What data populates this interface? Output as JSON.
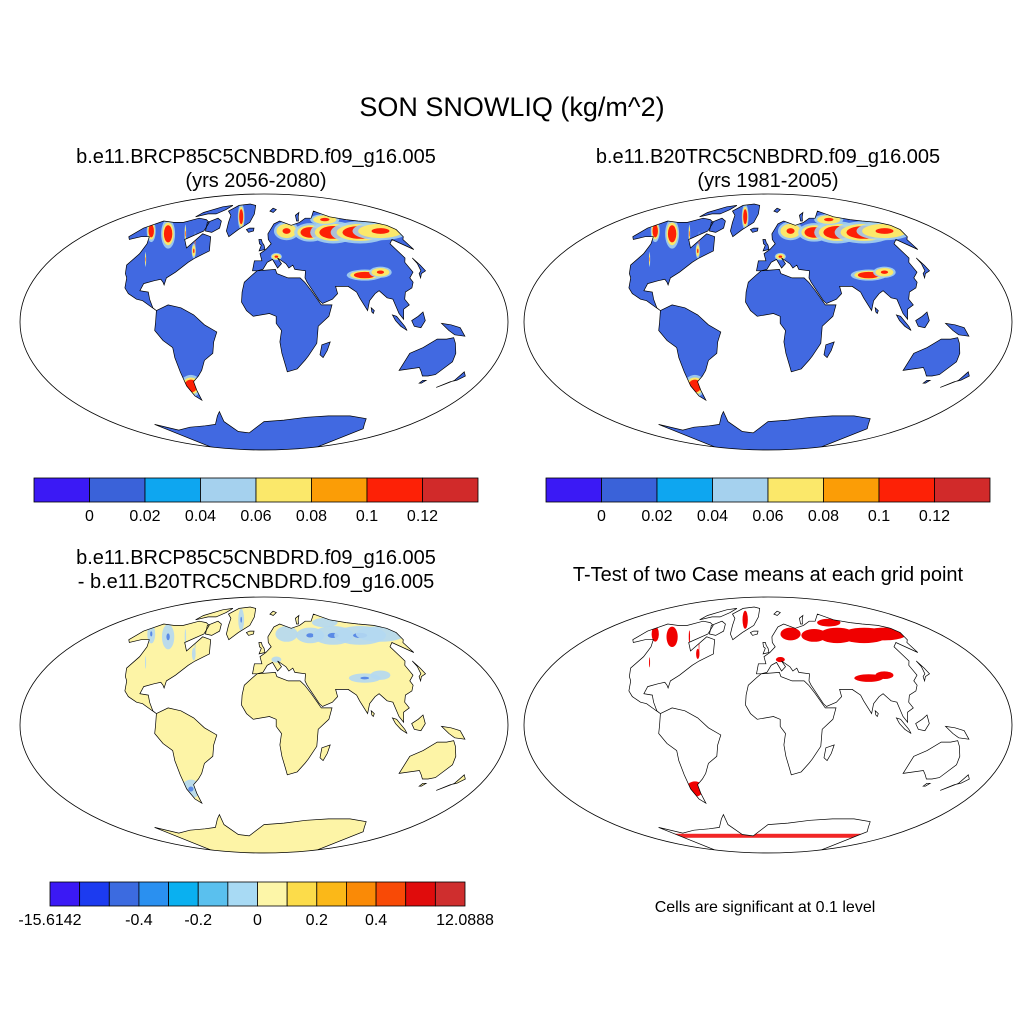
{
  "title": "SON SNOWLIQ (kg/m^2)",
  "panels": [
    {
      "name": "future-case",
      "line1": "b.e11.BRCP85C5CNBDRD.f09_g16.005",
      "line2": "(yrs 2056-2080)"
    },
    {
      "name": "historical-case",
      "line1": "b.e11.B20TRC5CNBDRD.f09_g16.005",
      "line2": "(yrs 1981-2005)"
    },
    {
      "name": "difference",
      "line1": "b.e11.BRCP85C5CNBDRD.f09_g16.005",
      "line2": "- b.e11.B20TRC5CNBDRD.f09_g16.005"
    },
    {
      "name": "t-test",
      "line1": "T-Test of two Case means at each grid point"
    }
  ],
  "colorbars": {
    "main": {
      "colors": [
        "#3b19f5",
        "#3a62d9",
        "#0ea6f0",
        "#a5d1ee",
        "#fbe86a",
        "#fb9d06",
        "#fd2106",
        "#d12a2a"
      ],
      "labels": [
        "0",
        "0.02",
        "0.04",
        "0.06",
        "0.08",
        "0.1",
        "0.12"
      ]
    },
    "diff": {
      "colors": [
        "#3b19f5",
        "#1c3bf0",
        "#3c6be0",
        "#2a90f0",
        "#0ab0f0",
        "#5ac0ee",
        "#a8daf4",
        "#fdf6a8",
        "#fcdc4a",
        "#fbb818",
        "#fa8a06",
        "#f84a06",
        "#e00c0c",
        "#cf2e2e"
      ],
      "labels": [
        "-15.6142",
        "-0.4",
        "-0.2",
        "0",
        "0.2",
        "0.4",
        "12.0888"
      ]
    }
  },
  "map_colors": {
    "land": "#4169e1",
    "snow_light": "#a5d1ee",
    "snow_mid": "#fbe86a",
    "snow_heavy": "#fd2106",
    "diff_land": "#fdf4a6",
    "significant": "#f00000"
  },
  "significance_note": "Cells are significant at 0.1 level"
}
